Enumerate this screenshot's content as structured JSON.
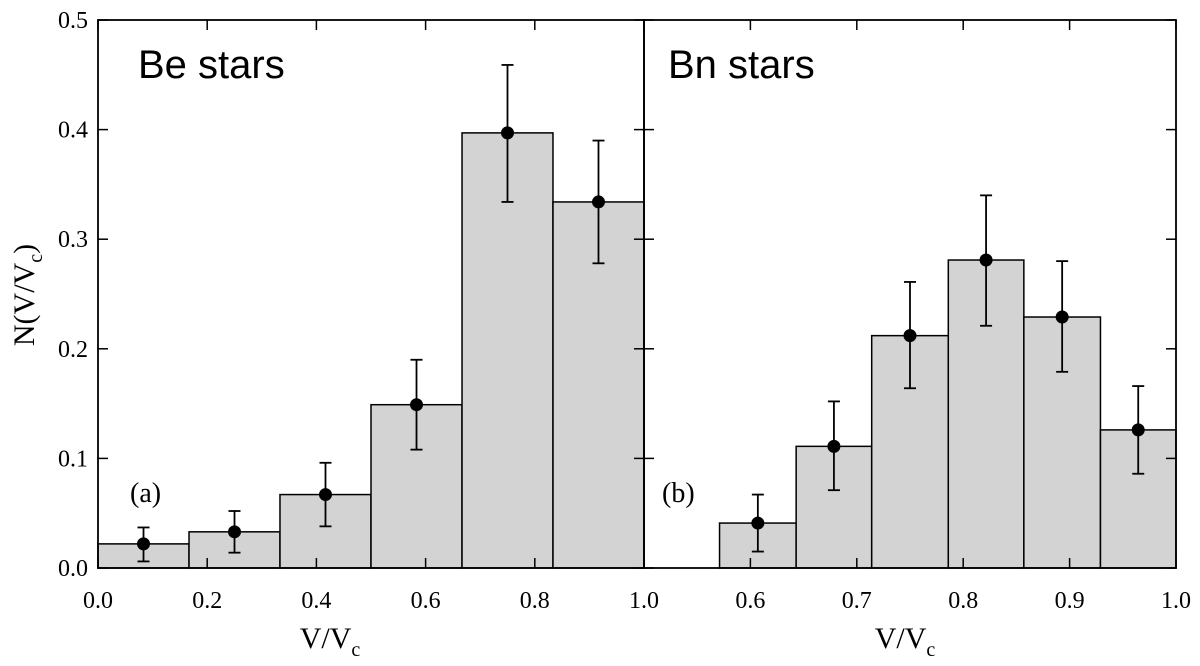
{
  "chart_data": [
    {
      "type": "bar",
      "title": "Be stars",
      "panel_label": "(a)",
      "xlabel": {
        "main": "V/V",
        "sub": "c"
      },
      "ylabel": {
        "main": "N(V/V",
        "sub": "c",
        "close": ")"
      },
      "xlim": [
        0.0,
        1.0
      ],
      "ylim": [
        0.0,
        0.5
      ],
      "xticks": [
        0.0,
        0.2,
        0.4,
        0.6,
        0.8,
        1.0
      ],
      "xtick_labels": [
        "0.0",
        "0.2",
        "0.4",
        "0.6",
        "0.8",
        "1.0"
      ],
      "yticks": [
        0.0,
        0.1,
        0.2,
        0.3,
        0.4,
        0.5
      ],
      "ytick_labels": [
        "0.0",
        "0.1",
        "0.2",
        "0.3",
        "0.4",
        "0.5"
      ],
      "bin_edges": [
        0.0,
        0.1667,
        0.3333,
        0.5,
        0.6667,
        0.8333,
        1.0
      ],
      "values": [
        0.022,
        0.033,
        0.067,
        0.149,
        0.397,
        0.334
      ],
      "err_low": [
        0.006,
        0.014,
        0.038,
        0.108,
        0.334,
        0.278
      ],
      "err_high": [
        0.037,
        0.052,
        0.096,
        0.19,
        0.459,
        0.39
      ]
    },
    {
      "type": "bar",
      "title": "Bn stars",
      "panel_label": "(b)",
      "xlabel": {
        "main": "V/V",
        "sub": "c"
      },
      "xlim": [
        0.5,
        1.0
      ],
      "ylim": [
        0.0,
        0.5
      ],
      "xticks": [
        0.6,
        0.7,
        0.8,
        0.9,
        1.0
      ],
      "xtick_labels": [
        "0.6",
        "0.7",
        "0.8",
        "0.9",
        "1.0"
      ],
      "bin_edges": [
        0.571,
        0.643,
        0.714,
        0.786,
        0.857,
        0.929,
        1.0
      ],
      "values": [
        0.041,
        0.111,
        0.212,
        0.281,
        0.229,
        0.126
      ],
      "err_low": [
        0.015,
        0.071,
        0.164,
        0.221,
        0.179,
        0.086
      ],
      "err_high": [
        0.067,
        0.152,
        0.261,
        0.34,
        0.28,
        0.166
      ]
    }
  ],
  "colors": {
    "bar_fill": "#d3d3d3",
    "bar_stroke": "#000000",
    "point": "#000000"
  }
}
